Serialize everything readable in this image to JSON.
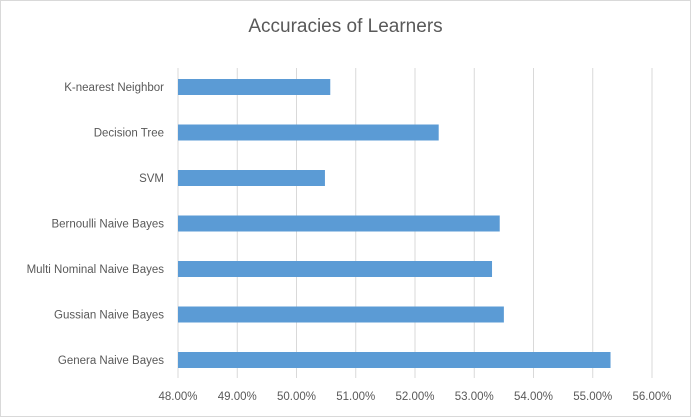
{
  "chart_data": {
    "type": "bar",
    "orientation": "horizontal",
    "title": "Accuracies of Learners",
    "xlabel": "",
    "ylabel": "",
    "categories": [
      "K-nearest Neighbor",
      "Decision Tree",
      "SVM",
      "Bernoulli Naive Bayes",
      "Multi Nominal Naive Bayes",
      "Gussian Naive Bayes",
      "Genera Naive Bayes"
    ],
    "values": [
      50.57,
      52.4,
      50.48,
      53.43,
      53.3,
      53.5,
      55.3
    ],
    "xlim": [
      48,
      56
    ],
    "ticks": [
      "48.00%",
      "49.00%",
      "50.00%",
      "51.00%",
      "52.00%",
      "53.00%",
      "54.00%",
      "55.00%",
      "56.00%"
    ],
    "tick_values": [
      48,
      49,
      50,
      51,
      52,
      53,
      54,
      55,
      56
    ],
    "grid": true,
    "bar_color": "#5b9bd5",
    "grid_color": "#d9d9d9",
    "text_color": "#595959"
  }
}
